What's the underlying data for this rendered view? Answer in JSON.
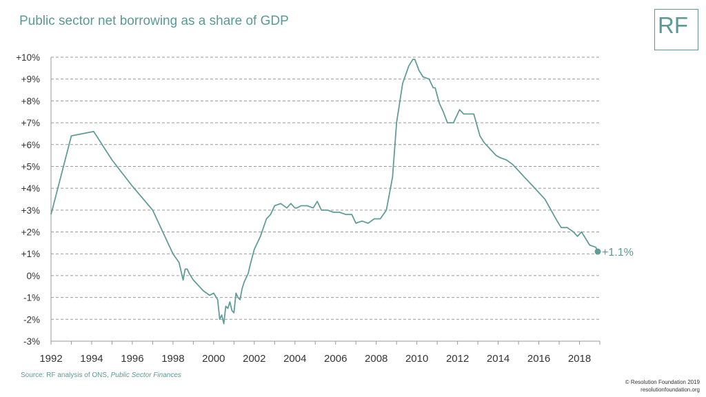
{
  "header": {
    "title": "Public sector net borrowing as a share of GDP",
    "logo_text": "RF"
  },
  "footer": {
    "source_prefix": "Source: RF analysis of ONS, ",
    "source_italic": "Public Sector Finances",
    "copyright_line1": "© Resolution Foundation 2019",
    "copyright_line2": "resolutionfoundation.org"
  },
  "colors": {
    "series": "#5f9d99",
    "grid": "#999999",
    "text": "#333333",
    "accent": "#5a9a96"
  },
  "chart_data": {
    "type": "line",
    "title": "Public sector net borrowing as a share of GDP",
    "xlabel": "",
    "ylabel": "",
    "xlim": [
      1992,
      2019
    ],
    "ylim": [
      -3,
      10
    ],
    "x_ticks": [
      "1992",
      "1994",
      "1996",
      "1998",
      "2000",
      "2002",
      "2004",
      "2006",
      "2008",
      "2010",
      "2012",
      "2014",
      "2016",
      "2018"
    ],
    "y_ticks": [
      "-3%",
      "-2%",
      "-1%",
      "0%",
      "+1%",
      "+2%",
      "+3%",
      "+4%",
      "+5%",
      "+6%",
      "+7%",
      "+8%",
      "+9%",
      "+10%"
    ],
    "grid": "horizontal dashed",
    "end_label": "+1.1%",
    "series": [
      {
        "x": [
          1992.0,
          1993.0,
          1994.1,
          1995.0,
          1996.0,
          1997.0,
          1997.5,
          1998.0,
          1998.3,
          1998.5,
          1998.6,
          1998.7,
          1998.8,
          1999.0,
          1999.2,
          1999.5,
          1999.8,
          2000.0,
          2000.2,
          2000.3,
          2000.4,
          2000.5,
          2000.6,
          2000.7,
          2000.8,
          2000.9,
          2001.0,
          2001.1,
          2001.2,
          2001.3,
          2001.4,
          2001.5,
          2001.6,
          2001.7,
          2001.8,
          2002.0,
          2002.3,
          2002.6,
          2002.8,
          2003.0,
          2003.3,
          2003.6,
          2003.8,
          2004.0,
          2004.1,
          2004.3,
          2004.6,
          2004.9,
          2005.1,
          2005.3,
          2005.6,
          2005.9,
          2006.2,
          2006.5,
          2006.8,
          2007.0,
          2007.3,
          2007.6,
          2007.9,
          2008.2,
          2008.5,
          2008.8,
          2009.0,
          2009.3,
          2009.6,
          2009.8,
          2009.9,
          2010.1,
          2010.3,
          2010.6,
          2010.8,
          2010.9,
          2011.1,
          2011.3,
          2011.5,
          2011.8,
          2012.1,
          2012.3,
          2012.5,
          2012.8,
          2013.1,
          2013.3,
          2013.6,
          2013.9,
          2014.1,
          2014.4,
          2014.7,
          2015.0,
          2015.3,
          2015.6,
          2016.0,
          2016.3,
          2016.6,
          2016.9,
          2017.1,
          2017.4,
          2017.7,
          2017.9,
          2018.1,
          2018.3,
          2018.5,
          2018.8,
          2018.9
        ],
        "y": [
          2.8,
          6.4,
          6.6,
          5.3,
          4.1,
          3.0,
          2.0,
          1.0,
          0.6,
          -0.2,
          0.3,
          0.3,
          0.1,
          -0.2,
          -0.4,
          -0.7,
          -0.9,
          -0.8,
          -1.1,
          -2.0,
          -1.8,
          -2.2,
          -1.4,
          -1.5,
          -1.2,
          -1.6,
          -1.7,
          -0.8,
          -1.0,
          -1.1,
          -0.6,
          -0.3,
          -0.1,
          0.1,
          0.5,
          1.2,
          1.8,
          2.6,
          2.8,
          3.2,
          3.3,
          3.1,
          3.3,
          3.1,
          3.1,
          3.2,
          3.2,
          3.1,
          3.4,
          3.0,
          3.0,
          2.9,
          2.9,
          2.8,
          2.8,
          2.4,
          2.5,
          2.4,
          2.6,
          2.6,
          3.0,
          4.5,
          7.0,
          8.8,
          9.6,
          9.9,
          9.9,
          9.4,
          9.1,
          9.0,
          8.6,
          8.6,
          7.9,
          7.5,
          7.0,
          7.0,
          7.6,
          7.4,
          7.4,
          7.4,
          6.4,
          6.1,
          5.8,
          5.5,
          5.4,
          5.3,
          5.1,
          4.8,
          4.5,
          4.2,
          3.8,
          3.5,
          3.0,
          2.5,
          2.2,
          2.2,
          2.0,
          1.8,
          2.0,
          1.7,
          1.4,
          1.3,
          1.1
        ]
      }
    ]
  }
}
